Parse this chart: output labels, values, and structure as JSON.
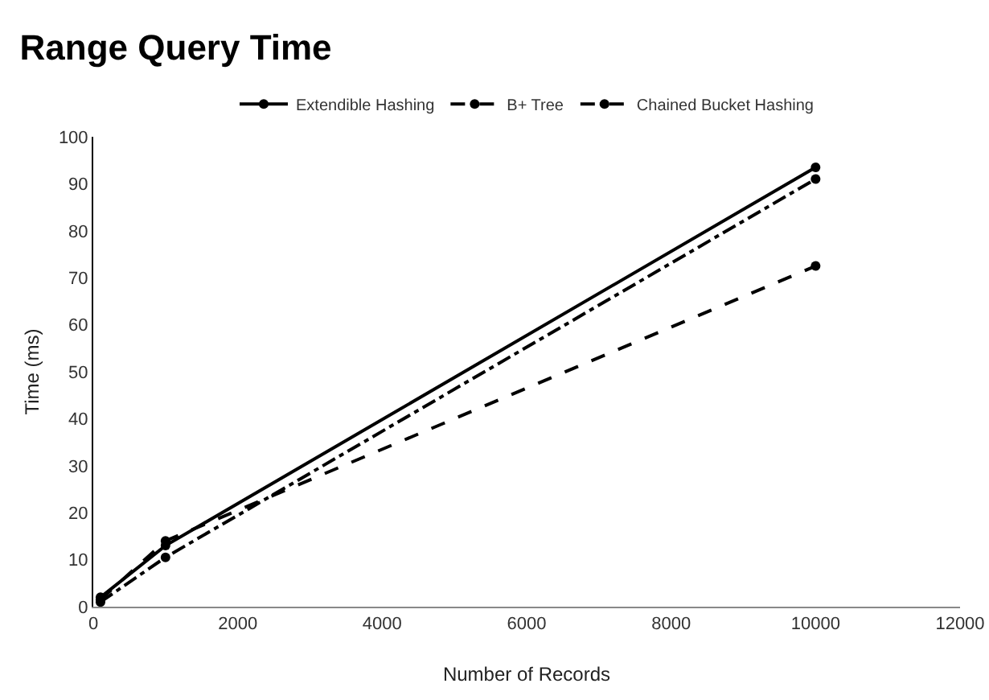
{
  "chart_data": {
    "type": "line",
    "title": "Range Query Time",
    "xlabel": "Number of Records",
    "ylabel": "Time (ms)",
    "x": [
      100,
      1000,
      10000
    ],
    "series": [
      {
        "name": "Extendible Hashing",
        "color": "#000000",
        "line_style": "solid",
        "values": [
          2,
          13,
          93.5
        ]
      },
      {
        "name": "B+ Tree",
        "color": "#000000",
        "line_style": "dashed",
        "values": [
          1.5,
          14,
          72.5
        ]
      },
      {
        "name": "Chained Bucket Hashing",
        "color": "#000000",
        "line_style": "dashdot",
        "values": [
          1,
          10.5,
          91
        ]
      }
    ],
    "xlim": [
      0,
      12000
    ],
    "xticks": [
      0,
      2000,
      4000,
      6000,
      8000,
      10000,
      12000
    ],
    "ylim": [
      0,
      100
    ],
    "yticks": [
      0,
      10,
      20,
      30,
      40,
      50,
      60,
      70,
      80,
      90,
      100
    ],
    "grid": false,
    "legend": "top",
    "marker": "circle"
  }
}
